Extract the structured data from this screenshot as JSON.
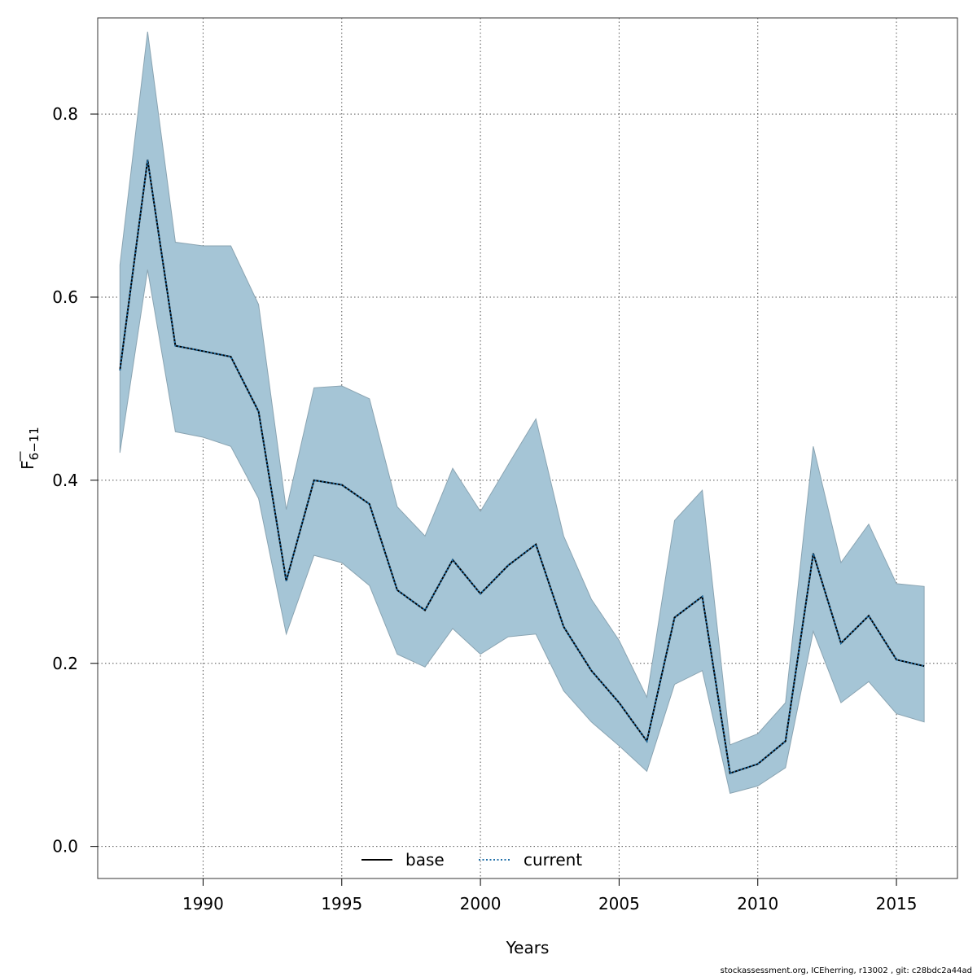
{
  "chart_data": {
    "type": "line",
    "xlabel": "Years",
    "ylabel": "F",
    "ylabel_sub": "6−11",
    "xlim": [
      1986.2,
      2017.2
    ],
    "ylim": [
      -0.035,
      0.905
    ],
    "xticks": [
      1990,
      1995,
      2000,
      2005,
      2010,
      2015
    ],
    "yticks": [
      0.0,
      0.2,
      0.4,
      0.6,
      0.8
    ],
    "ytick_labels": [
      "0.0",
      "0.2",
      "0.4",
      "0.6",
      "0.8"
    ],
    "grid": true,
    "legend_placement": "bottom",
    "x": [
      1987,
      1988,
      1989,
      1990,
      1991,
      1992,
      1993,
      1994,
      1995,
      1996,
      1997,
      1998,
      1999,
      2000,
      2001,
      2002,
      2003,
      2004,
      2005,
      2006,
      2007,
      2008,
      2009,
      2010,
      2011,
      2012,
      2013,
      2014,
      2015,
      2016
    ],
    "series": [
      {
        "name": "base",
        "style": "solid",
        "color": "#000000",
        "values": [
          0.52,
          0.75,
          0.547,
          0.541,
          0.535,
          0.475,
          0.29,
          0.4,
          0.395,
          0.374,
          0.28,
          0.258,
          0.313,
          0.276,
          0.307,
          0.33,
          0.24,
          0.192,
          0.157,
          0.115,
          0.25,
          0.273,
          0.08,
          0.09,
          0.115,
          0.32,
          0.222,
          0.252,
          0.204,
          0.197
        ]
      },
      {
        "name": "current",
        "style": "dotted",
        "color": "#1f6fa8",
        "values": [
          0.52,
          0.75,
          0.547,
          0.541,
          0.535,
          0.475,
          0.29,
          0.4,
          0.395,
          0.374,
          0.28,
          0.258,
          0.313,
          0.276,
          0.307,
          0.33,
          0.24,
          0.192,
          0.157,
          0.115,
          0.25,
          0.273,
          0.08,
          0.09,
          0.115,
          0.32,
          0.222,
          0.252,
          0.204,
          0.197
        ]
      }
    ],
    "band": {
      "color": "#a5c5d6",
      "lower": [
        0.43,
        0.63,
        0.453,
        0.447,
        0.437,
        0.38,
        0.232,
        0.318,
        0.31,
        0.285,
        0.21,
        0.196,
        0.238,
        0.21,
        0.229,
        0.232,
        0.17,
        0.136,
        0.11,
        0.082,
        0.177,
        0.192,
        0.058,
        0.066,
        0.086,
        0.235,
        0.157,
        0.18,
        0.145,
        0.136
      ],
      "upper": [
        0.635,
        0.89,
        0.66,
        0.656,
        0.656,
        0.592,
        0.368,
        0.501,
        0.503,
        0.489,
        0.371,
        0.339,
        0.413,
        0.366,
        0.417,
        0.467,
        0.339,
        0.27,
        0.225,
        0.163,
        0.356,
        0.389,
        0.111,
        0.123,
        0.157,
        0.437,
        0.31,
        0.352,
        0.287,
        0.284
      ]
    }
  },
  "footer": "stockassessment.org, ICEherring, r13002 , git: c28bdc2a44ad"
}
